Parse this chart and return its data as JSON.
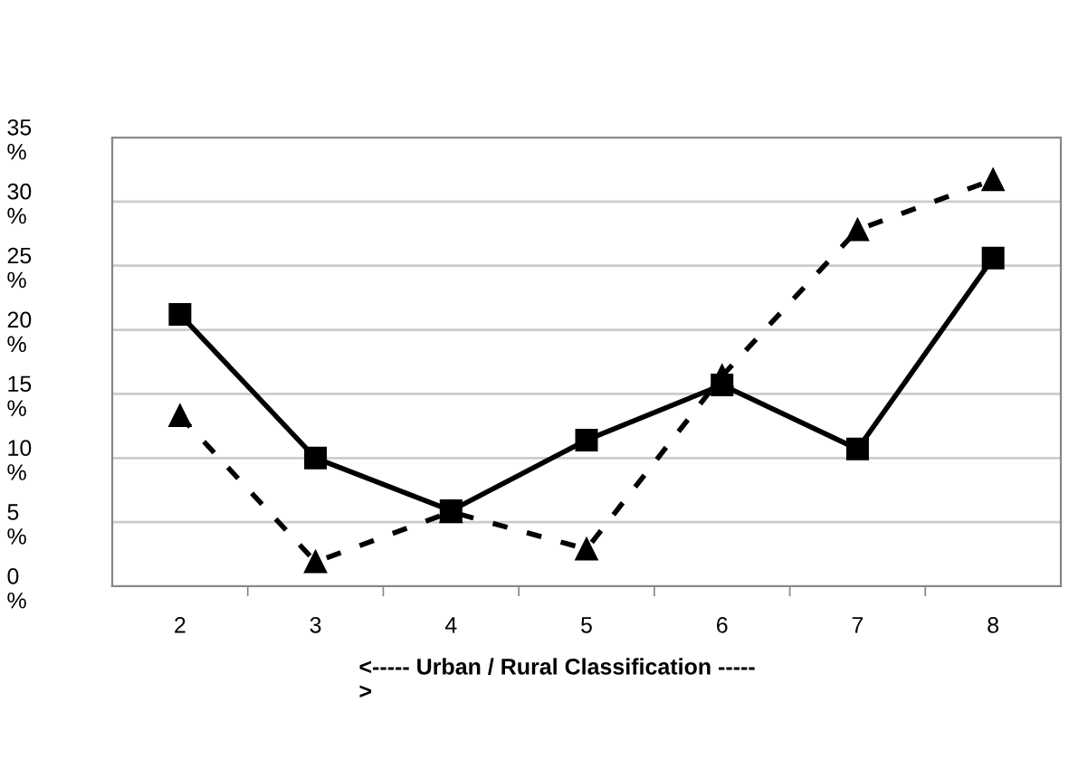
{
  "chart_data": {
    "type": "line",
    "xlabel": "<----- Urban / Rural Classification -----\n>",
    "categories": [
      "2",
      "3",
      "4",
      "5",
      "6",
      "7",
      "8"
    ],
    "series": [
      {
        "color": "#000000",
        "marker": "square",
        "line_style": "solid",
        "values": [
          21.2,
          10.0,
          5.9,
          11.4,
          15.7,
          10.7,
          25.6
        ]
      },
      {
        "color": "#000000",
        "marker": "triangle",
        "line_style": "dashed",
        "values": [
          13.3,
          1.9,
          5.8,
          2.9,
          16.4,
          27.8,
          31.7
        ]
      }
    ],
    "ylim": [
      0,
      35
    ],
    "yticks": [
      {
        "value": 0,
        "label": "0\n%"
      },
      {
        "value": 5,
        "label": "5\n%"
      },
      {
        "value": 10,
        "label": "10\n%"
      },
      {
        "value": 15,
        "label": "15\n%"
      },
      {
        "value": 20,
        "label": "20\n%"
      },
      {
        "value": 25,
        "label": "25\n%"
      },
      {
        "value": 30,
        "label": "30\n%"
      },
      {
        "value": 35,
        "label": "35\n%"
      }
    ],
    "grid": "y",
    "legend": false
  }
}
